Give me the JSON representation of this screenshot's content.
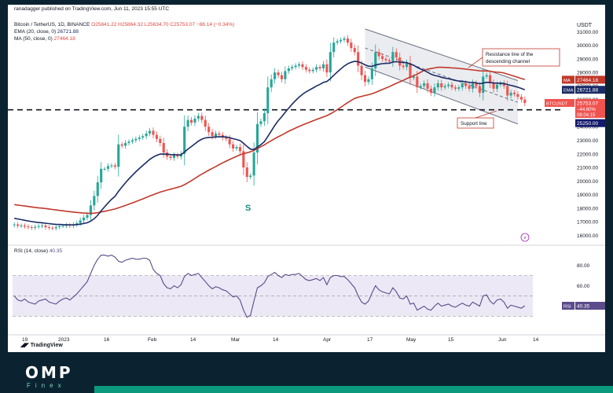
{
  "header": {
    "author_line": "ranadagger published on TradingView.com, Jun 11, 2023 15:55 UTC",
    "symbol_line": "Bitcoin / TetherUS, 1D, BINANCE",
    "ohlc": "O25841.22 H25864.32 L25634.70 C25753.07 −88.14 (−0.34%)",
    "ema_line": "EMA (20, close, 0)",
    "ema_value": "26721.88",
    "ma_line": "MA (50, close, 0)",
    "ma_value": "27464.18",
    "rsi_line": "RSI (14, close)",
    "rsi_value": "40.35",
    "currency": "USDT",
    "tv_brand": "TradingView"
  },
  "colors": {
    "ema": "#1b2b66",
    "ma": "#c0392b",
    "up": "#26a69a",
    "down": "#ef5350",
    "channel_fill": "#e8eaee",
    "rsi_line": "#5b4b8a",
    "rsi_fill": "#ece8f6"
  },
  "chart_data": {
    "type": "candlestick",
    "price_axis": {
      "ylim": [
        15500,
        31600
      ],
      "ticks": [
        "16000.00",
        "17000.00",
        "18000.00",
        "19000.00",
        "20000.00",
        "21000.00",
        "22000.00",
        "23000.00",
        "24000.00",
        "25000.00",
        "26000.00",
        "27000.00",
        "28000.00",
        "29000.00",
        "30000.00",
        "31000.00"
      ]
    },
    "time_axis": {
      "labels": [
        "19",
        "2023",
        "16",
        "Feb",
        "14",
        "Mar",
        "14",
        "Apr",
        "17",
        "May",
        "15",
        "Jun",
        "14"
      ]
    },
    "close_approx": [
      16800,
      16700,
      16720,
      16650,
      16600,
      16550,
      16620,
      16680,
      16720,
      16600,
      16550,
      16520,
      16610,
      16680,
      16700,
      16750,
      16700,
      16800,
      16900,
      17100,
      17300,
      17500,
      18200,
      18900,
      19900,
      20900,
      20900,
      21100,
      21150,
      21050,
      22700,
      22600,
      22800,
      22900,
      23000,
      23100,
      23200,
      23300,
      23500,
      23700,
      23400,
      23100,
      22800,
      22100,
      21800,
      21700,
      21900,
      21800,
      22000,
      24000,
      24500,
      24300,
      24600,
      24800,
      24500,
      24000,
      23600,
      23300,
      23500,
      23400,
      23200,
      23100,
      22700,
      22400,
      22500,
      22200,
      21000,
      20300,
      20400,
      22100,
      24200,
      24400,
      25000,
      26900,
      27500,
      28000,
      27800,
      27500,
      28100,
      28300,
      28400,
      28500,
      28600,
      28400,
      28200,
      28100,
      28200,
      28400,
      28300,
      28600,
      28000,
      29500,
      30200,
      30300,
      30400,
      30500,
      30200,
      29800,
      29500,
      28500,
      27800,
      27300,
      27500,
      28300,
      29500,
      29200,
      29000,
      28900,
      28800,
      29500,
      29100,
      28500,
      28400,
      28700,
      27600,
      27700,
      26900,
      27000,
      27200,
      26800,
      26500,
      26900,
      27200,
      26900,
      27000,
      27100,
      26900,
      26800,
      26900,
      27200,
      27000,
      26800,
      27200,
      27000,
      26500,
      27700,
      27800,
      27200,
      26800,
      27100,
      27200,
      27000,
      26300,
      26500,
      26400,
      26200,
      26000,
      25750
    ],
    "ema_20_last": 26721.88,
    "ma_50_last": 27464.18,
    "last_price": 25753.07,
    "price_labels": {
      "ma": "27464.18",
      "ema": "26721.88",
      "symbol_tag": "BTCUSDT",
      "last": "25753.07",
      "change": "−44.60%",
      "countdown": "08:04:15",
      "support": "25250.00"
    },
    "support_level": 25250,
    "annotations": {
      "resistance": "Resistance line of the descending channel",
      "support": "Support line",
      "s_marker": "S"
    },
    "rsi": {
      "period": 14,
      "ylim": [
        18,
        92
      ],
      "overbought": 70,
      "midline": 50,
      "oversold": 30,
      "ticks": [
        "80.00",
        "60.00"
      ],
      "last": 40.35,
      "values": [
        50,
        46,
        45,
        47,
        44,
        43,
        42,
        45,
        46,
        47,
        44,
        43,
        42,
        45,
        47,
        48,
        46,
        49,
        52,
        56,
        60,
        64,
        72,
        80,
        86,
        90,
        90,
        89,
        90,
        88,
        84,
        83,
        85,
        86,
        87,
        86,
        86,
        87,
        87,
        85,
        76,
        72,
        70,
        62,
        58,
        57,
        60,
        58,
        61,
        69,
        72,
        70,
        71,
        72,
        68,
        64,
        60,
        57,
        59,
        58,
        56,
        55,
        52,
        49,
        50,
        46,
        36,
        29,
        31,
        45,
        58,
        60,
        63,
        69,
        71,
        73,
        70,
        68,
        71,
        70,
        71,
        71,
        72,
        69,
        66,
        65,
        66,
        67,
        65,
        68,
        61,
        68,
        70,
        70,
        69,
        69,
        66,
        62,
        58,
        50,
        44,
        42,
        45,
        53,
        60,
        56,
        54,
        53,
        52,
        58,
        54,
        48,
        47,
        50,
        42,
        43,
        36,
        38,
        40,
        37,
        36,
        40,
        43,
        40,
        41,
        42,
        40,
        39,
        41,
        43,
        41,
        40,
        44,
        42,
        40,
        50,
        51,
        45,
        42,
        46,
        47,
        44,
        38,
        41,
        40,
        39,
        38,
        40.35
      ]
    }
  }
}
